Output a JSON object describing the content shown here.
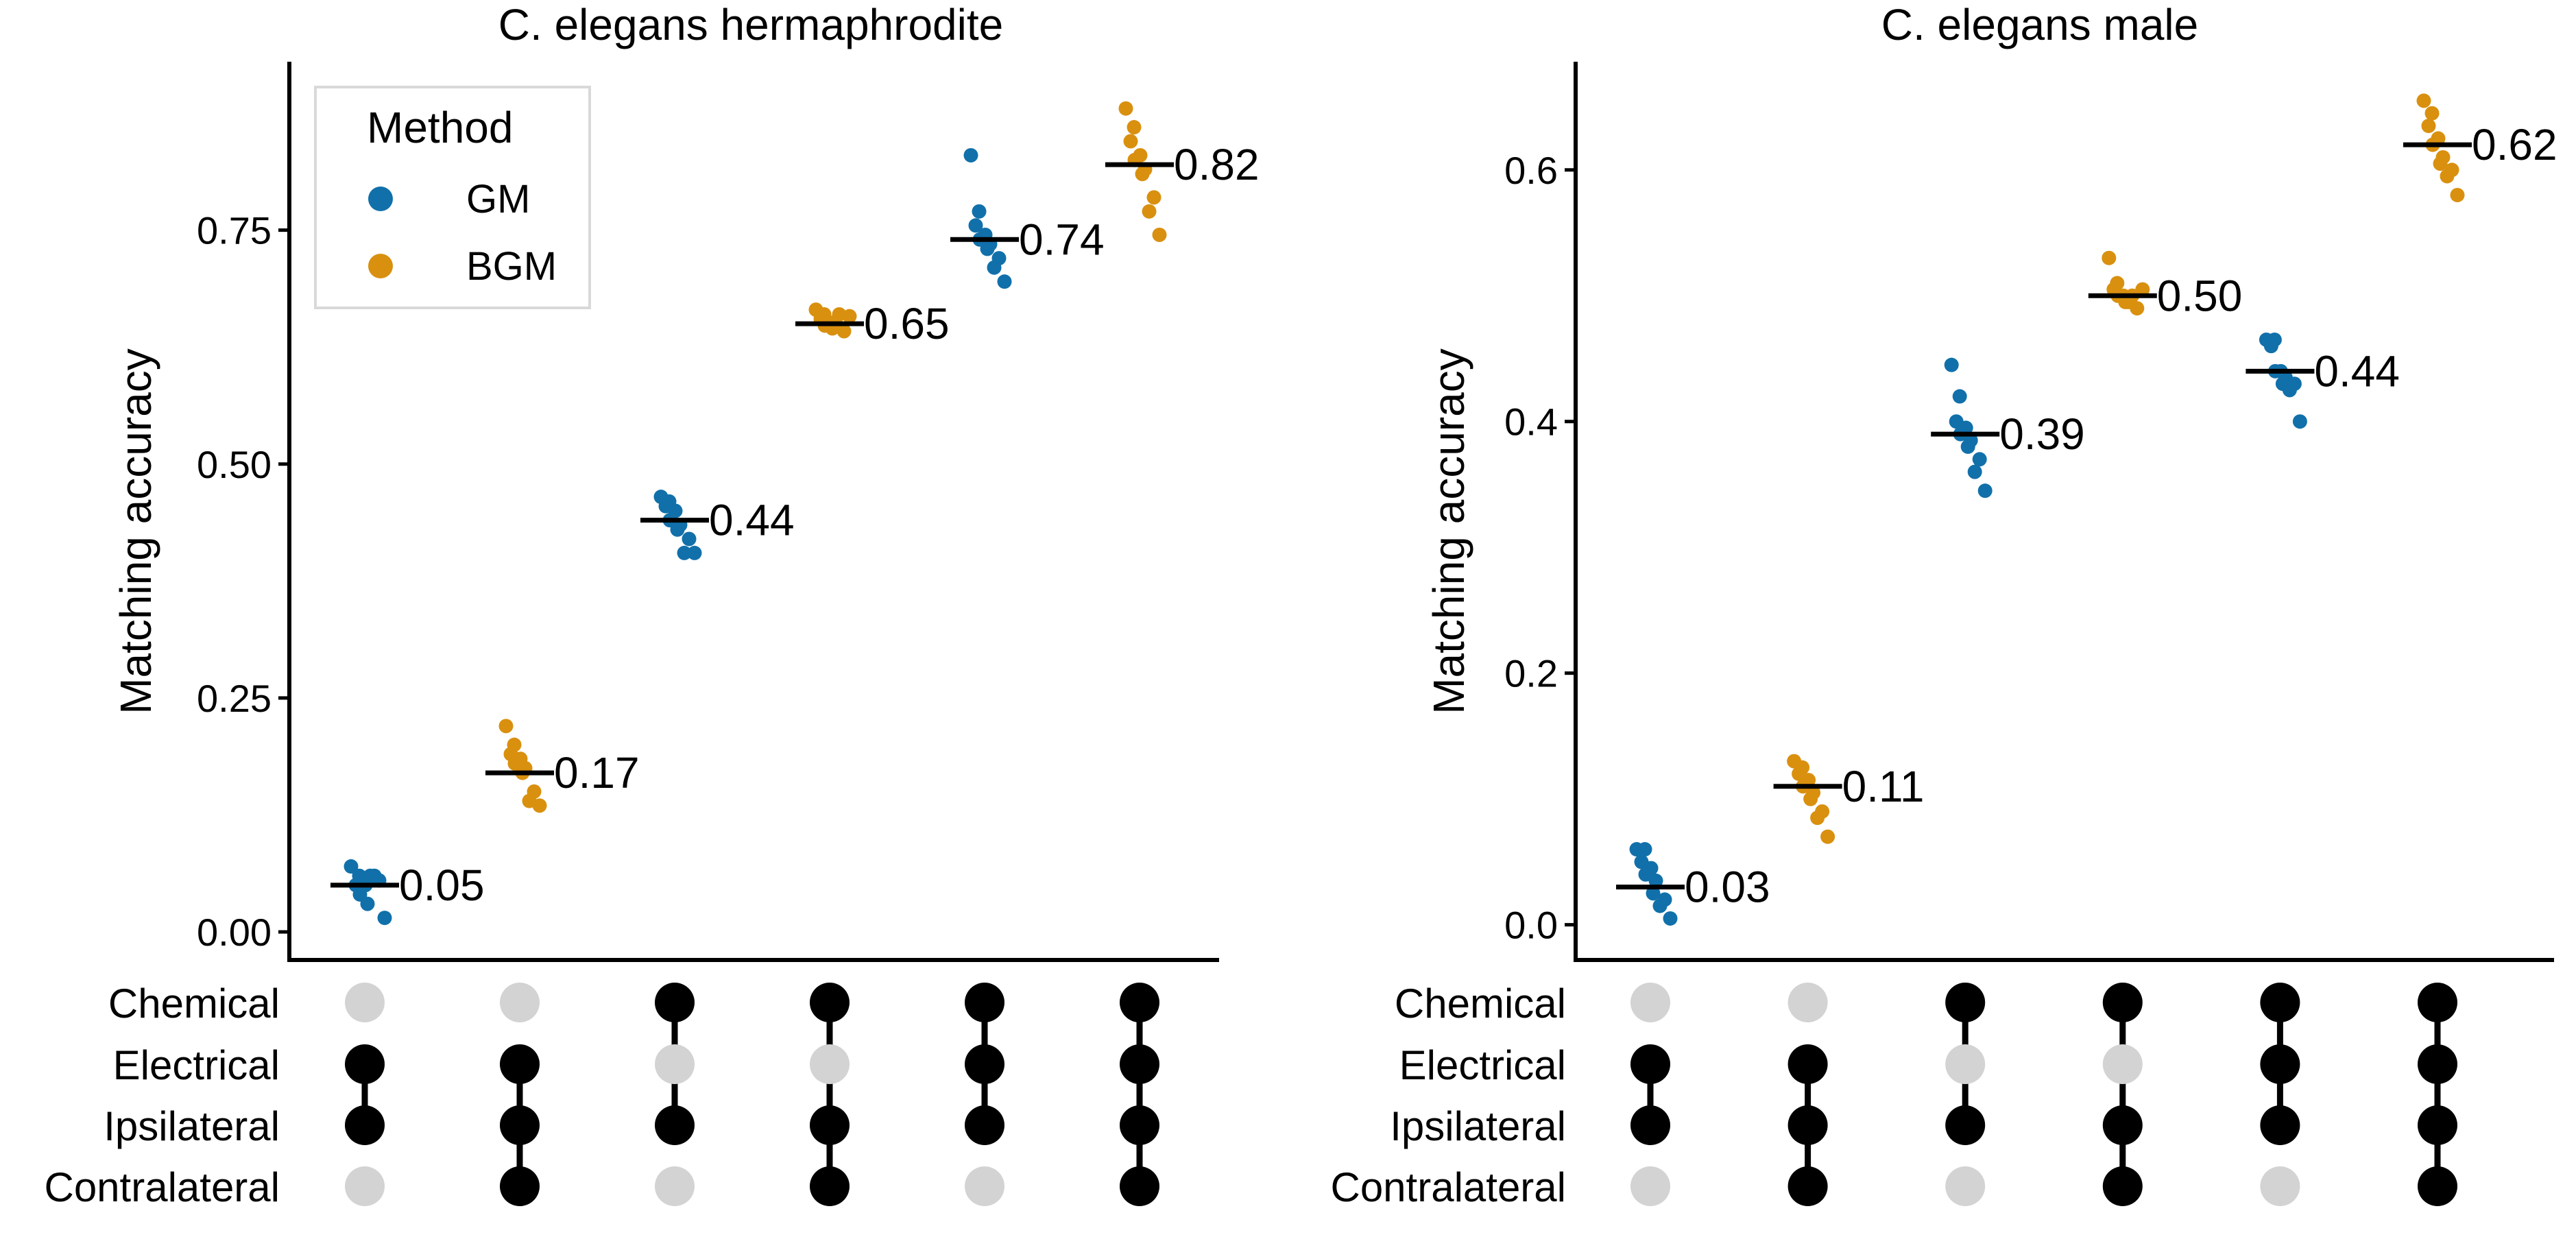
{
  "colors": {
    "GM": "#1170aa",
    "BGM": "#d9900f",
    "median_line": "#000000",
    "dot_on": "#000000",
    "dot_off": "#d3d3d3"
  },
  "legend": {
    "title": "Method",
    "entries": [
      {
        "label": "GM",
        "color_key": "GM"
      },
      {
        "label": "BGM",
        "color_key": "BGM"
      }
    ],
    "placement": "top-left of left panel"
  },
  "matrix_rows": [
    "Chemical",
    "Electrical",
    "Ipsilateral",
    "Contralateral"
  ],
  "matrix_columns": [
    {
      "Chemical": false,
      "Electrical": true,
      "Ipsilateral": true,
      "Contralateral": false
    },
    {
      "Chemical": false,
      "Electrical": true,
      "Ipsilateral": true,
      "Contralateral": true
    },
    {
      "Chemical": true,
      "Electrical": false,
      "Ipsilateral": true,
      "Contralateral": false
    },
    {
      "Chemical": true,
      "Electrical": false,
      "Ipsilateral": true,
      "Contralateral": true
    },
    {
      "Chemical": true,
      "Electrical": true,
      "Ipsilateral": true,
      "Contralateral": false
    },
    {
      "Chemical": true,
      "Electrical": true,
      "Ipsilateral": true,
      "Contralateral": true
    }
  ],
  "chart_data": [
    {
      "type": "scatter",
      "title": "C. elegans hermaphrodite",
      "ylabel": "Matching accuracy",
      "xlabel": "",
      "ylim": [
        -0.03,
        0.93
      ],
      "yticks": [
        0.0,
        0.25,
        0.5,
        0.75
      ],
      "ytick_labels": [
        "0.00",
        "0.25",
        "0.50",
        "0.75"
      ],
      "grid": false,
      "groups": [
        {
          "method": "GM",
          "median": 0.05,
          "label": "0.05",
          "values": [
            0.07,
            0.06,
            0.05,
            0.05,
            0.04,
            0.06,
            0.03,
            0.055,
            0.06,
            0.015
          ]
        },
        {
          "method": "BGM",
          "median": 0.17,
          "label": "0.17",
          "values": [
            0.22,
            0.2,
            0.19,
            0.185,
            0.18,
            0.175,
            0.17,
            0.15,
            0.14,
            0.135
          ]
        },
        {
          "method": "GM",
          "median": 0.44,
          "label": "0.44",
          "values": [
            0.465,
            0.46,
            0.455,
            0.45,
            0.44,
            0.435,
            0.43,
            0.42,
            0.405,
            0.405
          ]
        },
        {
          "method": "BGM",
          "median": 0.65,
          "label": "0.65",
          "values": [
            0.665,
            0.66,
            0.655,
            0.65,
            0.648,
            0.652,
            0.645,
            0.642,
            0.66,
            0.658
          ]
        },
        {
          "method": "GM",
          "median": 0.74,
          "label": "0.74",
          "values": [
            0.83,
            0.77,
            0.755,
            0.745,
            0.74,
            0.735,
            0.73,
            0.72,
            0.71,
            0.695
          ]
        },
        {
          "method": "BGM",
          "median": 0.82,
          "label": "0.82",
          "values": [
            0.88,
            0.86,
            0.845,
            0.83,
            0.825,
            0.815,
            0.81,
            0.785,
            0.77,
            0.745
          ]
        }
      ]
    },
    {
      "type": "scatter",
      "title": "C. elegans male",
      "ylabel": "Matching accuracy",
      "xlabel": "",
      "ylim": [
        -0.028,
        0.686
      ],
      "yticks": [
        0.0,
        0.2,
        0.4,
        0.6
      ],
      "ytick_labels": [
        "0.0",
        "0.2",
        "0.4",
        "0.6"
      ],
      "grid": false,
      "groups": [
        {
          "method": "GM",
          "median": 0.03,
          "label": "0.03",
          "values": [
            0.06,
            0.06,
            0.05,
            0.045,
            0.04,
            0.035,
            0.025,
            0.02,
            0.015,
            0.005
          ]
        },
        {
          "method": "BGM",
          "median": 0.11,
          "label": "0.11",
          "values": [
            0.13,
            0.125,
            0.12,
            0.115,
            0.11,
            0.105,
            0.1,
            0.09,
            0.085,
            0.07
          ]
        },
        {
          "method": "GM",
          "median": 0.39,
          "label": "0.39",
          "values": [
            0.445,
            0.42,
            0.4,
            0.395,
            0.39,
            0.385,
            0.38,
            0.37,
            0.36,
            0.345
          ]
        },
        {
          "method": "BGM",
          "median": 0.5,
          "label": "0.50",
          "values": [
            0.53,
            0.51,
            0.505,
            0.5,
            0.5,
            0.495,
            0.495,
            0.49,
            0.5,
            0.505
          ]
        },
        {
          "method": "GM",
          "median": 0.44,
          "label": "0.44",
          "values": [
            0.465,
            0.465,
            0.46,
            0.44,
            0.44,
            0.435,
            0.43,
            0.43,
            0.425,
            0.4
          ]
        },
        {
          "method": "BGM",
          "median": 0.62,
          "label": "0.62",
          "values": [
            0.655,
            0.645,
            0.635,
            0.625,
            0.62,
            0.61,
            0.605,
            0.6,
            0.595,
            0.58
          ]
        }
      ]
    }
  ]
}
